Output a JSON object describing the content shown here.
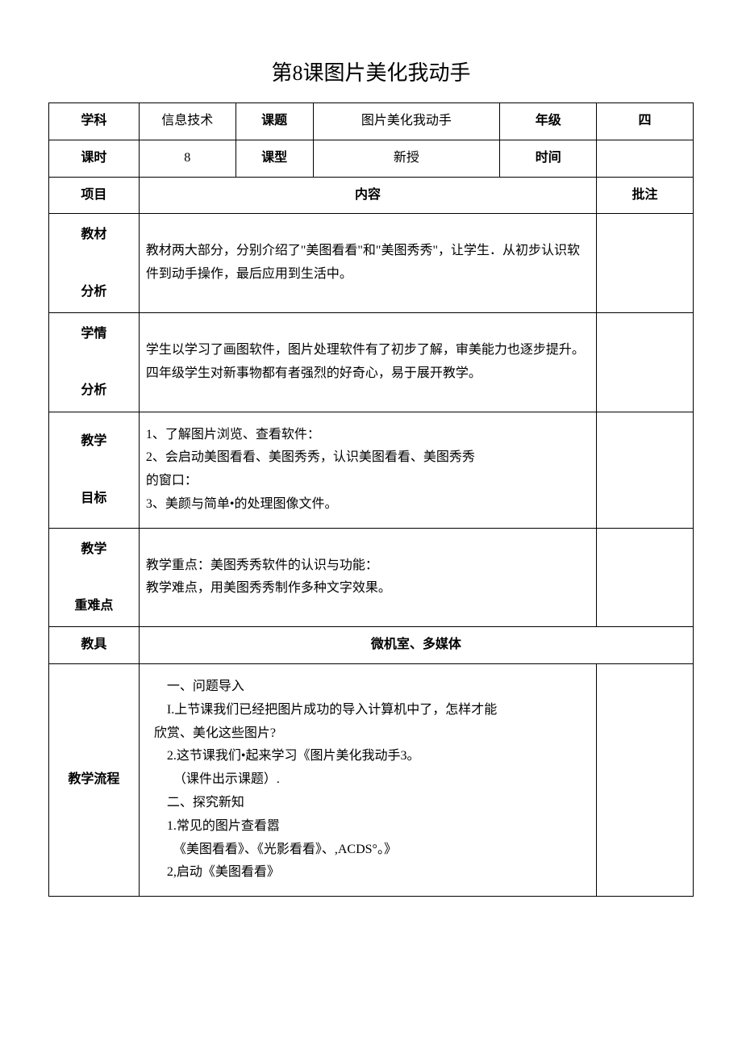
{
  "title": "第8课图片美化我动手",
  "header": {
    "subject_label": "学科",
    "subject_value": "信息技术",
    "topic_label": "课题",
    "topic_value": "图片美化我动手",
    "grade_label": "年级",
    "grade_value": "四",
    "period_label": "课时",
    "period_value": "8",
    "type_label": "课型",
    "type_value": "新授",
    "time_label": "时间",
    "time_value": ""
  },
  "section_header": {
    "item_label": "项目",
    "content_label": "内容",
    "note_label": "批注"
  },
  "rows": {
    "material": {
      "label": "教材\n\n分析",
      "content": "教材两大部分，分别介绍了\"美图看看\"和\"美图秀秀\"，让学生．从初步认识软件到动手操作，最后应用到生活中。"
    },
    "student": {
      "label": "学情\n\n分析",
      "content": "学生以学习了画图软件，图片处理软件有了初步了解，审美能力也逐步提升。四年级学生对新事物都有者强烈的好奇心，易于展开教学。"
    },
    "goal": {
      "label": "教学\n\n目标",
      "content": "1、了解图片浏览、查看软件：\n2、会启动美图看看、美图秀秀，认识美图看看、美图秀秀\n的窗口：\n3、美颜与简单•的处理图像文件。"
    },
    "keypoint": {
      "label": "教学\n\n重难点",
      "content": "教学重点：美图秀秀软件的认识与功能：\n教学难点，用美图秀秀制作多种文字效果。"
    },
    "tool": {
      "label": "教具",
      "content": "微机室、多媒体"
    },
    "flow": {
      "label": "教学流程",
      "content": "    一、问题导入\n    I.上节课我们已经把图片成功的导入计算机中了，怎样才能\n欣赏、美化这些图片?\n    2.这节课我们•起来学习《图片美化我动手3。\n      （课件出示课题）.\n    二、探究新知\n    1.常见的图片查看嚣\n      《美图看看》、《光影看看》、,ACDS°。》\n    2,启动《美图看看》"
    }
  }
}
